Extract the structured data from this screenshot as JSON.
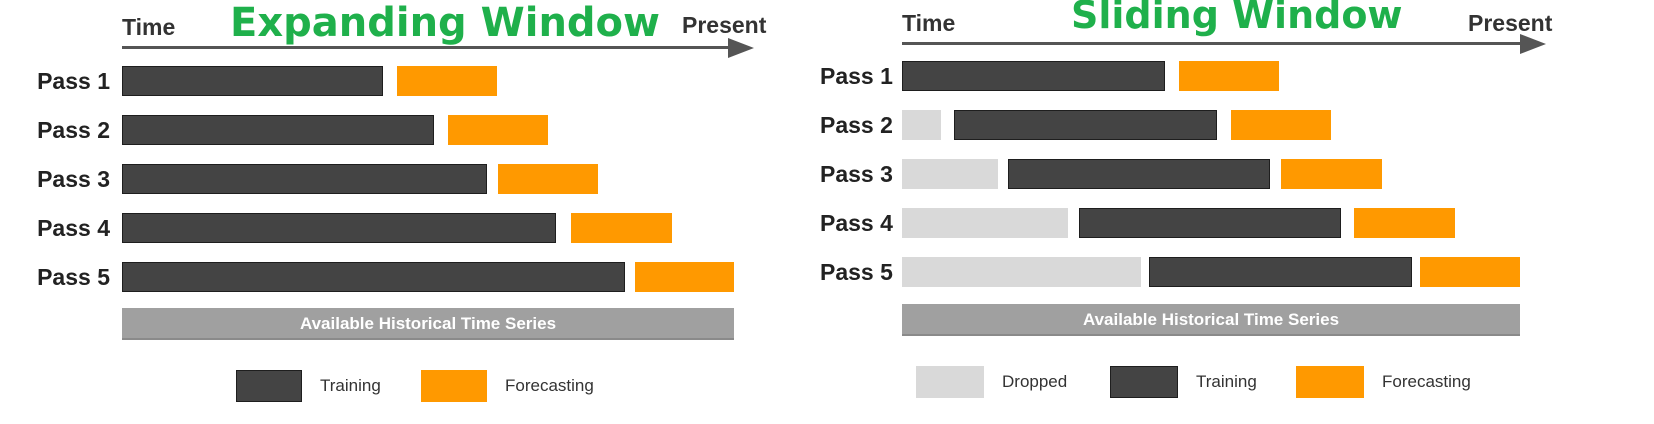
{
  "colors": {
    "title": "#1fb04b",
    "training": "#444444",
    "forecasting": "#ff9900",
    "dropped": "#d9d9d9",
    "history_bar": "#a0a0a0"
  },
  "expanding": {
    "title": "Expanding Window",
    "axis_start": "Time",
    "axis_end": "Present",
    "history_label": "Available Historical Time Series",
    "passes": [
      {
        "label": "Pass 1",
        "training": [
          0,
          0.427
        ],
        "forecasting": [
          0.449,
          0.612
        ]
      },
      {
        "label": "Pass 2",
        "training": [
          0,
          0.509
        ],
        "forecasting": [
          0.532,
          0.696
        ]
      },
      {
        "label": "Pass 3",
        "training": [
          0,
          0.596
        ],
        "forecasting": [
          0.614,
          0.778
        ]
      },
      {
        "label": "Pass 4",
        "training": [
          0,
          0.709
        ],
        "forecasting": [
          0.734,
          0.899
        ]
      },
      {
        "label": "Pass 5",
        "training": [
          0,
          0.822
        ],
        "forecasting": [
          0.839,
          1.0
        ]
      }
    ],
    "legend": [
      {
        "key": "training",
        "label": "Training"
      },
      {
        "key": "forecasting",
        "label": "Forecasting"
      }
    ]
  },
  "sliding": {
    "title": "Sliding Window",
    "axis_start": "Time",
    "axis_end": "Present",
    "history_label": "Available Historical Time Series",
    "passes": [
      {
        "label": "Pass 1",
        "dropped": null,
        "training": [
          0,
          0.425
        ],
        "forecasting": [
          0.448,
          0.61
        ]
      },
      {
        "label": "Pass 2",
        "dropped": [
          0,
          0.063
        ],
        "training": [
          0.084,
          0.509
        ],
        "forecasting": [
          0.532,
          0.695
        ]
      },
      {
        "label": "Pass 3",
        "dropped": [
          0,
          0.155
        ],
        "training": [
          0.171,
          0.595
        ],
        "forecasting": [
          0.614,
          0.776
        ]
      },
      {
        "label": "Pass 4",
        "dropped": [
          0,
          0.269
        ],
        "training": [
          0.287,
          0.711
        ],
        "forecasting": [
          0.732,
          0.895
        ]
      },
      {
        "label": "Pass 5",
        "dropped": [
          0,
          0.387
        ],
        "training": [
          0.399,
          0.825
        ],
        "forecasting": [
          0.838,
          1.0
        ]
      }
    ],
    "legend": [
      {
        "key": "dropped",
        "label": "Dropped"
      },
      {
        "key": "training",
        "label": "Training"
      },
      {
        "key": "forecasting",
        "label": "Forecasting"
      }
    ]
  }
}
